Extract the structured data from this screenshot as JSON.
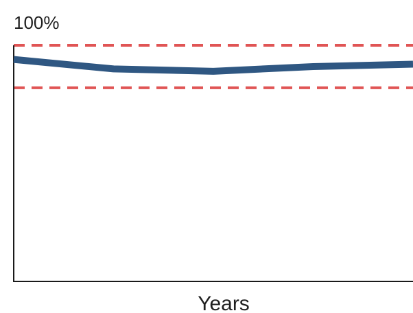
{
  "chart_data": {
    "type": "line",
    "title": "",
    "xlabel": "Years",
    "ylabel": "",
    "y_top_label": "100%",
    "ylim": [
      0,
      100
    ],
    "grid": false,
    "x": [
      0,
      1,
      2,
      3,
      4
    ],
    "series": [
      {
        "values": [
          94,
          90,
          89,
          91,
          92
        ],
        "color": "#2f5782",
        "style": "solid"
      }
    ],
    "reference_lines": [
      {
        "y": 100,
        "color": "#e05555",
        "style": "dashed"
      },
      {
        "y": 82,
        "color": "#e05555",
        "style": "dashed"
      }
    ]
  }
}
